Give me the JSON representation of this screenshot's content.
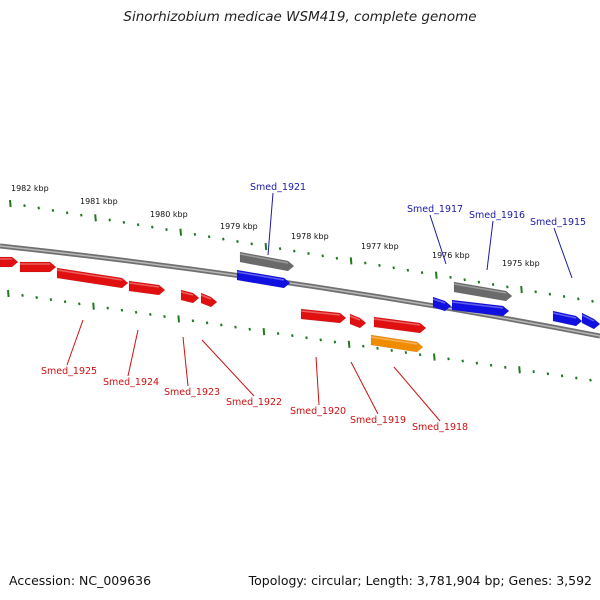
{
  "title": "Sinorhizobium medicae WSM419, complete genome",
  "footer": {
    "accession": "Accession: NC_009636",
    "topology": "Topology: circular; Length: 3,781,904 bp; Genes: 3,592"
  },
  "colors": {
    "backbone": "#8a8a8a",
    "tick": "#1f7a1f",
    "forward_label": "#1a1aa8",
    "reverse_label": "#cc1111",
    "gene_red": "#e01010",
    "gene_blue": "#1010e0",
    "gene_gray": "#6a6a6a",
    "gene_orange": "#f08c00"
  },
  "kbp_labels": [
    "1982 kbp",
    "1981 kbp",
    "1980 kbp",
    "1979 kbp",
    "1978 kbp",
    "1977 kbp",
    "1976 kbp",
    "1975 kbp"
  ],
  "gene_labels_top": [
    "Smed_1921",
    "Smed_1917",
    "Smed_1916",
    "Smed_1915"
  ],
  "gene_labels_bottom": [
    "Smed_1925",
    "Smed_1924",
    "Smed_1923",
    "Smed_1922",
    "Smed_1920",
    "Smed_1919",
    "Smed_1918"
  ],
  "features": [
    {
      "color": "red"
    },
    {
      "color": "red"
    },
    {
      "color": "red"
    },
    {
      "color": "red"
    },
    {
      "color": "red"
    },
    {
      "color": "red"
    },
    {
      "color": "red"
    },
    {
      "color": "red"
    },
    {
      "color": "red"
    },
    {
      "color": "orange"
    },
    {
      "color": "gray"
    },
    {
      "color": "blue"
    },
    {
      "color": "blue"
    },
    {
      "color": "gray"
    },
    {
      "color": "blue"
    },
    {
      "color": "blue"
    },
    {
      "color": "blue"
    }
  ]
}
